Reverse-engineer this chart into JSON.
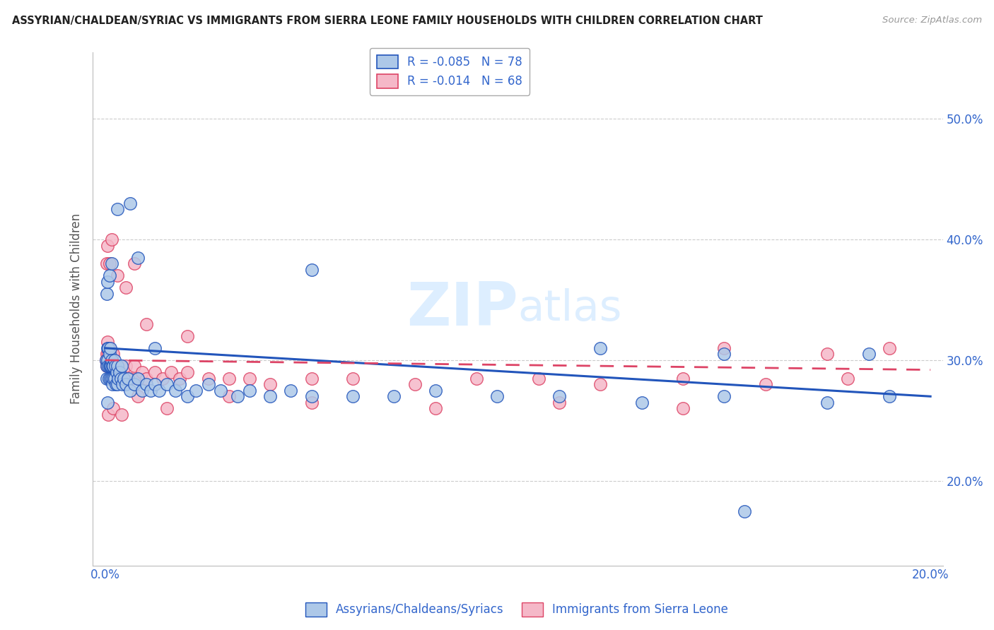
{
  "title": "ASSYRIAN/CHALDEAN/SYRIAC VS IMMIGRANTS FROM SIERRA LEONE FAMILY HOUSEHOLDS WITH CHILDREN CORRELATION CHART",
  "source": "Source: ZipAtlas.com",
  "ylabel": "Family Households with Children",
  "legend_1_label": "Assyrians/Chaldeans/Syriacs",
  "legend_2_label": "Immigrants from Sierra Leone",
  "legend_1_R": "-0.085",
  "legend_1_N": "78",
  "legend_2_R": "-0.014",
  "legend_2_N": "68",
  "color_blue": "#adc8e8",
  "color_pink": "#f5b8c8",
  "line_blue": "#2255bb",
  "line_pink": "#dd4466",
  "watermark_ZIP": "ZIP",
  "watermark_atlas": "atlas",
  "background": "#ffffff",
  "grid_color": "#cccccc",
  "blue_x": [
    0.0002,
    0.0003,
    0.0004,
    0.0005,
    0.0006,
    0.0006,
    0.0007,
    0.0008,
    0.0009,
    0.001,
    0.001,
    0.0012,
    0.0012,
    0.0013,
    0.0014,
    0.0015,
    0.0016,
    0.0017,
    0.0018,
    0.002,
    0.002,
    0.0022,
    0.0023,
    0.0025,
    0.0026,
    0.0028,
    0.003,
    0.003,
    0.0032,
    0.0035,
    0.0038,
    0.004,
    0.0042,
    0.0045,
    0.005,
    0.0055,
    0.006,
    0.007,
    0.008,
    0.009,
    0.01,
    0.011,
    0.012,
    0.013,
    0.015,
    0.017,
    0.018,
    0.02,
    0.022,
    0.025,
    0.028,
    0.032,
    0.035,
    0.04,
    0.045,
    0.05,
    0.06,
    0.07,
    0.08,
    0.095,
    0.11,
    0.13,
    0.15,
    0.175,
    0.19,
    0.0004,
    0.0006,
    0.001,
    0.0015,
    0.003,
    0.006,
    0.008,
    0.012,
    0.05,
    0.12,
    0.15,
    0.185,
    0.155
  ],
  "blue_y": [
    0.3,
    0.285,
    0.295,
    0.265,
    0.3,
    0.31,
    0.295,
    0.31,
    0.285,
    0.295,
    0.305,
    0.295,
    0.31,
    0.285,
    0.295,
    0.3,
    0.285,
    0.295,
    0.28,
    0.295,
    0.285,
    0.3,
    0.285,
    0.295,
    0.28,
    0.29,
    0.295,
    0.28,
    0.285,
    0.29,
    0.285,
    0.295,
    0.28,
    0.285,
    0.28,
    0.285,
    0.275,
    0.28,
    0.285,
    0.275,
    0.28,
    0.275,
    0.28,
    0.275,
    0.28,
    0.275,
    0.28,
    0.27,
    0.275,
    0.28,
    0.275,
    0.27,
    0.275,
    0.27,
    0.275,
    0.27,
    0.27,
    0.27,
    0.275,
    0.27,
    0.27,
    0.265,
    0.27,
    0.265,
    0.27,
    0.355,
    0.365,
    0.37,
    0.38,
    0.425,
    0.43,
    0.385,
    0.31,
    0.375,
    0.31,
    0.305,
    0.305,
    0.175
  ],
  "pink_x": [
    0.0002,
    0.0003,
    0.0004,
    0.0005,
    0.0006,
    0.0007,
    0.0008,
    0.0009,
    0.001,
    0.0012,
    0.0013,
    0.0015,
    0.0016,
    0.0018,
    0.002,
    0.0022,
    0.0025,
    0.003,
    0.0032,
    0.0035,
    0.004,
    0.0045,
    0.005,
    0.006,
    0.007,
    0.008,
    0.009,
    0.01,
    0.012,
    0.014,
    0.016,
    0.018,
    0.02,
    0.025,
    0.03,
    0.035,
    0.04,
    0.05,
    0.06,
    0.075,
    0.09,
    0.105,
    0.12,
    0.14,
    0.16,
    0.18,
    0.0004,
    0.0006,
    0.001,
    0.0015,
    0.003,
    0.005,
    0.007,
    0.01,
    0.02,
    0.15,
    0.175,
    0.19,
    0.0008,
    0.002,
    0.004,
    0.008,
    0.015,
    0.03,
    0.05,
    0.08,
    0.11,
    0.14
  ],
  "pink_y": [
    0.3,
    0.295,
    0.305,
    0.295,
    0.315,
    0.295,
    0.305,
    0.295,
    0.31,
    0.295,
    0.305,
    0.295,
    0.305,
    0.295,
    0.305,
    0.29,
    0.295,
    0.29,
    0.295,
    0.285,
    0.295,
    0.285,
    0.295,
    0.285,
    0.295,
    0.285,
    0.29,
    0.285,
    0.29,
    0.285,
    0.29,
    0.285,
    0.29,
    0.285,
    0.285,
    0.285,
    0.28,
    0.285,
    0.285,
    0.28,
    0.285,
    0.285,
    0.28,
    0.285,
    0.28,
    0.285,
    0.38,
    0.395,
    0.38,
    0.4,
    0.37,
    0.36,
    0.38,
    0.33,
    0.32,
    0.31,
    0.305,
    0.31,
    0.255,
    0.26,
    0.255,
    0.27,
    0.26,
    0.27,
    0.265,
    0.26,
    0.265,
    0.26
  ]
}
